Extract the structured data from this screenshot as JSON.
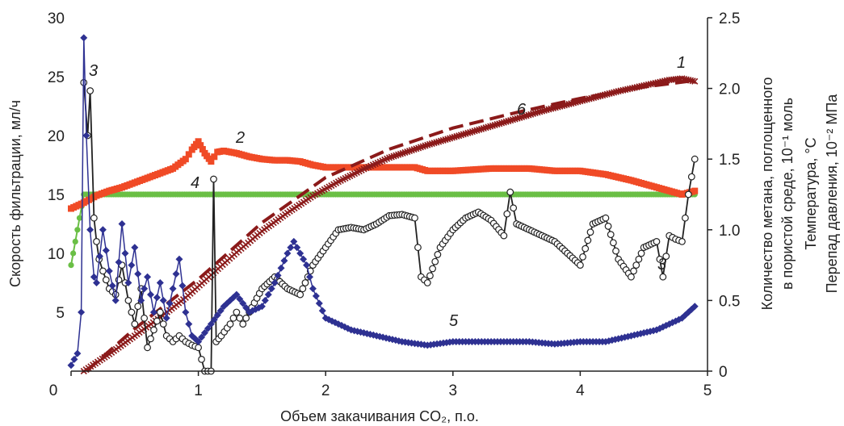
{
  "chart_data": {
    "type": "line",
    "title": "",
    "xlabel": "Объем закачивания CO₂, п.о.",
    "ylabel_left": "Скорость фильтрации, мл/ч",
    "ylabel_right": [
      "Количество метана, поглощенного",
      "в пористой среде, 10⁻¹ моль",
      "Температура, °С",
      "Перепад давления, 10⁻² МПа"
    ],
    "xlim": [
      0,
      5
    ],
    "ylim_left": [
      0,
      30
    ],
    "ylim_right": [
      0,
      2.5
    ],
    "x_ticks": [
      "0",
      "1",
      "2",
      "3",
      "4",
      "5"
    ],
    "y_left_ticks": [
      "30",
      "25",
      "20",
      "15",
      "10",
      "5"
    ],
    "y_right_ticks": [
      "2.5",
      "2.0",
      "1.5",
      "1.0",
      "0.5",
      "0"
    ],
    "grid": false,
    "legend": "none",
    "series": [
      {
        "label": "1",
        "color": "#8b1a1a",
        "marker": "x",
        "axis": "right",
        "x": [
          0.1,
          0.3,
          0.5,
          0.7,
          0.9,
          1.1,
          1.3,
          1.5,
          1.7,
          1.9,
          2.1,
          2.3,
          2.5,
          2.8,
          3.1,
          3.4,
          3.7,
          4.0,
          4.3,
          4.5,
          4.7,
          4.8,
          4.9
        ],
        "values": [
          0.0,
          0.12,
          0.25,
          0.38,
          0.52,
          0.68,
          0.84,
          0.99,
          1.12,
          1.24,
          1.34,
          1.43,
          1.51,
          1.6,
          1.68,
          1.76,
          1.84,
          1.91,
          1.98,
          2.02,
          2.06,
          2.07,
          2.05
        ]
      },
      {
        "label": "2",
        "color": "#f04a26",
        "marker": "square",
        "axis": "left",
        "x": [
          0.0,
          0.1,
          0.2,
          0.3,
          0.4,
          0.5,
          0.6,
          0.7,
          0.8,
          0.9,
          0.95,
          1.0,
          1.05,
          1.1,
          1.15,
          1.2,
          1.3,
          1.4,
          1.5,
          1.6,
          1.7,
          1.8,
          1.9,
          2.0,
          2.2,
          2.5,
          2.7,
          2.8,
          3.0,
          3.3,
          3.6,
          3.8,
          4.0,
          4.2,
          4.4,
          4.6,
          4.8,
          4.9
        ],
        "values": [
          13.8,
          14.3,
          14.9,
          15.3,
          15.6,
          16.0,
          16.4,
          16.8,
          17.2,
          18.0,
          18.8,
          19.5,
          18.5,
          17.8,
          18.6,
          18.7,
          18.5,
          18.2,
          18.0,
          17.9,
          17.9,
          17.8,
          17.5,
          17.3,
          17.3,
          17.3,
          17.3,
          17.0,
          17.0,
          17.2,
          17.2,
          17.0,
          17.0,
          16.7,
          16.2,
          15.6,
          15.0,
          15.3
        ]
      },
      {
        "label": "3",
        "color": "#222222",
        "marker": "circle",
        "axis": "left",
        "x": [
          0.1,
          0.13,
          0.15,
          0.18,
          0.2,
          0.22,
          0.25,
          0.3,
          0.35,
          0.4,
          0.45,
          0.5,
          0.55,
          0.6,
          0.65,
          0.7,
          0.75,
          0.8,
          0.85,
          0.9,
          0.95,
          1.0,
          1.05,
          1.1,
          1.12,
          1.14,
          1.18,
          1.25,
          1.3,
          1.35,
          1.4,
          1.5,
          1.6,
          1.7,
          1.8,
          1.9,
          2.0,
          2.1,
          2.2,
          2.3,
          2.4,
          2.5,
          2.6,
          2.7,
          2.75,
          2.8,
          2.9,
          3.0,
          3.1,
          3.2,
          3.3,
          3.4,
          3.45,
          3.5,
          3.6,
          3.7,
          3.8,
          3.9,
          4.0,
          4.1,
          4.2,
          4.3,
          4.4,
          4.5,
          4.6,
          4.65,
          4.7,
          4.75,
          4.8,
          4.85,
          4.9
        ],
        "values": [
          24.5,
          20.0,
          23.8,
          13.0,
          11.0,
          9.5,
          8.5,
          7.0,
          6.5,
          9.0,
          6.0,
          4.0,
          7.0,
          2.0,
          3.5,
          5.0,
          3.0,
          2.5,
          3.0,
          2.5,
          2.2,
          2.0,
          0.0,
          0.0,
          16.3,
          2.5,
          3.0,
          4.0,
          5.0,
          4.0,
          5.0,
          7.0,
          8.0,
          7.0,
          6.5,
          9.0,
          10.5,
          12.0,
          12.2,
          12.0,
          12.5,
          13.2,
          13.3,
          13.0,
          8.0,
          7.5,
          10.5,
          12.0,
          13.0,
          13.5,
          12.8,
          11.5,
          15.2,
          12.5,
          12.0,
          11.5,
          11.0,
          10.0,
          9.0,
          12.5,
          13.0,
          9.5,
          8.0,
          10.5,
          11.0,
          8.0,
          11.5,
          11.2,
          11.0,
          15.0,
          18.0
        ]
      },
      {
        "label": "4",
        "color": "#6abf45",
        "marker": "circle",
        "axis": "left",
        "x": [
          0.0,
          0.1,
          4.9
        ],
        "values": [
          9.0,
          15.0,
          15.0
        ]
      },
      {
        "label": "5",
        "color": "#2e3192",
        "marker": "diamond",
        "axis": "left",
        "x": [
          0.0,
          0.05,
          0.08,
          0.1,
          0.12,
          0.15,
          0.18,
          0.2,
          0.25,
          0.3,
          0.35,
          0.4,
          0.45,
          0.5,
          0.55,
          0.6,
          0.65,
          0.7,
          0.75,
          0.8,
          0.85,
          0.9,
          0.95,
          1.0,
          1.1,
          1.2,
          1.3,
          1.4,
          1.5,
          1.6,
          1.7,
          1.75,
          1.8,
          1.85,
          1.9,
          2.0,
          2.2,
          2.4,
          2.6,
          2.8,
          3.0,
          3.2,
          3.4,
          3.6,
          3.8,
          4.0,
          4.2,
          4.4,
          4.6,
          4.8,
          4.9
        ],
        "values": [
          0.5,
          1.5,
          5.0,
          28.3,
          20.0,
          12.0,
          8.0,
          7.5,
          12.0,
          8.5,
          6.0,
          12.5,
          7.5,
          10.5,
          6.0,
          8.0,
          5.0,
          7.5,
          4.5,
          7.0,
          9.5,
          5.0,
          3.0,
          2.5,
          4.0,
          5.5,
          6.5,
          5.0,
          5.5,
          7.5,
          10.0,
          11.0,
          10.0,
          9.0,
          7.0,
          4.5,
          3.5,
          3.0,
          2.5,
          2.2,
          2.5,
          2.5,
          2.5,
          2.5,
          2.3,
          2.5,
          2.5,
          3.0,
          3.5,
          4.5,
          5.5
        ]
      },
      {
        "label": "6",
        "color": "#8b1a1a",
        "marker": "none",
        "style": "dashed",
        "axis": "right",
        "x": [
          0.12,
          0.5,
          1.0,
          1.5,
          2.0,
          2.5,
          3.0,
          3.5,
          4.0,
          4.5,
          4.85
        ],
        "values": [
          0.0,
          0.3,
          0.65,
          1.05,
          1.37,
          1.57,
          1.72,
          1.83,
          1.93,
          2.01,
          2.05
        ]
      }
    ],
    "curve_labels": [
      "3",
      "2",
      "4",
      "1",
      "6",
      "3",
      "5"
    ]
  }
}
